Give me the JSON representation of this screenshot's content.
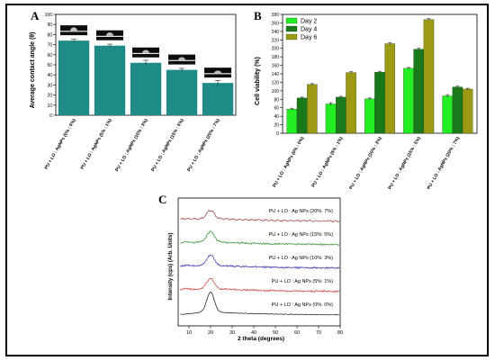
{
  "colors": {
    "panel_a_bar": "#1e8b86",
    "day2": "#22ee22",
    "day4": "#1a7a1a",
    "day6": "#9c9a14",
    "xrd_0": "#111111",
    "xrd_1": "#cc3333",
    "xrd_2": "#3333aa",
    "xrd_3": "#228822",
    "xrd_4": "#993333"
  },
  "chart_data": [
    {
      "panel_label": "A",
      "type": "bar",
      "ylabel": "Average contact angle (θ)",
      "xlabel": "",
      "ylim": [
        0,
        100
      ],
      "yticks": [
        "0",
        "10",
        "20",
        "30",
        "40",
        "50",
        "60",
        "70",
        "80",
        "90",
        "100"
      ],
      "categories": [
        "PU + LO : AgNPs (0% : 0%)",
        "PU + LO : AgNPs (5% : 1%)",
        "PU + LO : AgNPs (10% : 3%)",
        "PU + LO : AgNPs (15% : 5%)",
        "PU + LO : AgNPs (20% : 7%)"
      ],
      "values": [
        74,
        69,
        52,
        45,
        32
      ],
      "error": [
        1.5,
        1.5,
        2.5,
        1.5,
        2.5
      ],
      "insets": "droplet images"
    },
    {
      "panel_label": "B",
      "type": "bar",
      "ylabel": "Cell viability (%)",
      "xlabel": "",
      "ylim": [
        0,
        280
      ],
      "yticks": [
        "0",
        "20",
        "40",
        "60",
        "80",
        "100",
        "120",
        "140",
        "160",
        "180",
        "200",
        "220",
        "240",
        "260",
        "280"
      ],
      "categories": [
        "PU + LO : AgNPs (0% : 0%)",
        "PU + LO : AgNPs (5% : 1%)",
        "PU + LO : AgNPs (10% : 3%)",
        "PU + LO : AgNPs (15% : 5%)",
        "PU + LO : AgNPs (20% : 7%)"
      ],
      "legend_position": "top-left",
      "series": [
        {
          "name": "Day 2",
          "values": [
            57,
            69,
            81,
            153,
            88
          ],
          "error": [
            2,
            3,
            2,
            2,
            3
          ]
        },
        {
          "name": "Day 4",
          "values": [
            83,
            85,
            144,
            198,
            109
          ],
          "error": [
            2,
            2,
            2,
            2,
            2
          ]
        },
        {
          "name": "Day 6",
          "values": [
            115,
            143,
            211,
            268,
            104
          ],
          "error": [
            2,
            2,
            2,
            2,
            2
          ]
        }
      ]
    },
    {
      "panel_label": "C",
      "type": "line",
      "xlabel": "2 theta (degrees)",
      "ylabel": "Intensity (cps) (Arb. Units)",
      "xlim": [
        5,
        80
      ],
      "xticks": [
        "10",
        "20",
        "30",
        "40",
        "50",
        "60",
        "70",
        "80"
      ],
      "series": [
        {
          "name": "PU + LO : Ag NPs (0%: 0%)",
          "offset": 0,
          "peak": 20,
          "peak_height": 1.0
        },
        {
          "name": "PU + LO : Ag NPs (5%: 1%)",
          "offset": 1,
          "peak": 20,
          "peak_height": 0.5
        },
        {
          "name": "PU + LO : Ag NPs (10%: 3%)",
          "offset": 2,
          "peak": 20,
          "peak_height": 0.5
        },
        {
          "name": "PU + LO : Ag NPs (15%: 5%)",
          "offset": 3,
          "peak": 20,
          "peak_height": 0.5
        },
        {
          "name": "PU + LO : Ag NPs (20%: 7%)",
          "offset": 4,
          "peak": 20,
          "peak_height": 0.4
        }
      ]
    }
  ]
}
